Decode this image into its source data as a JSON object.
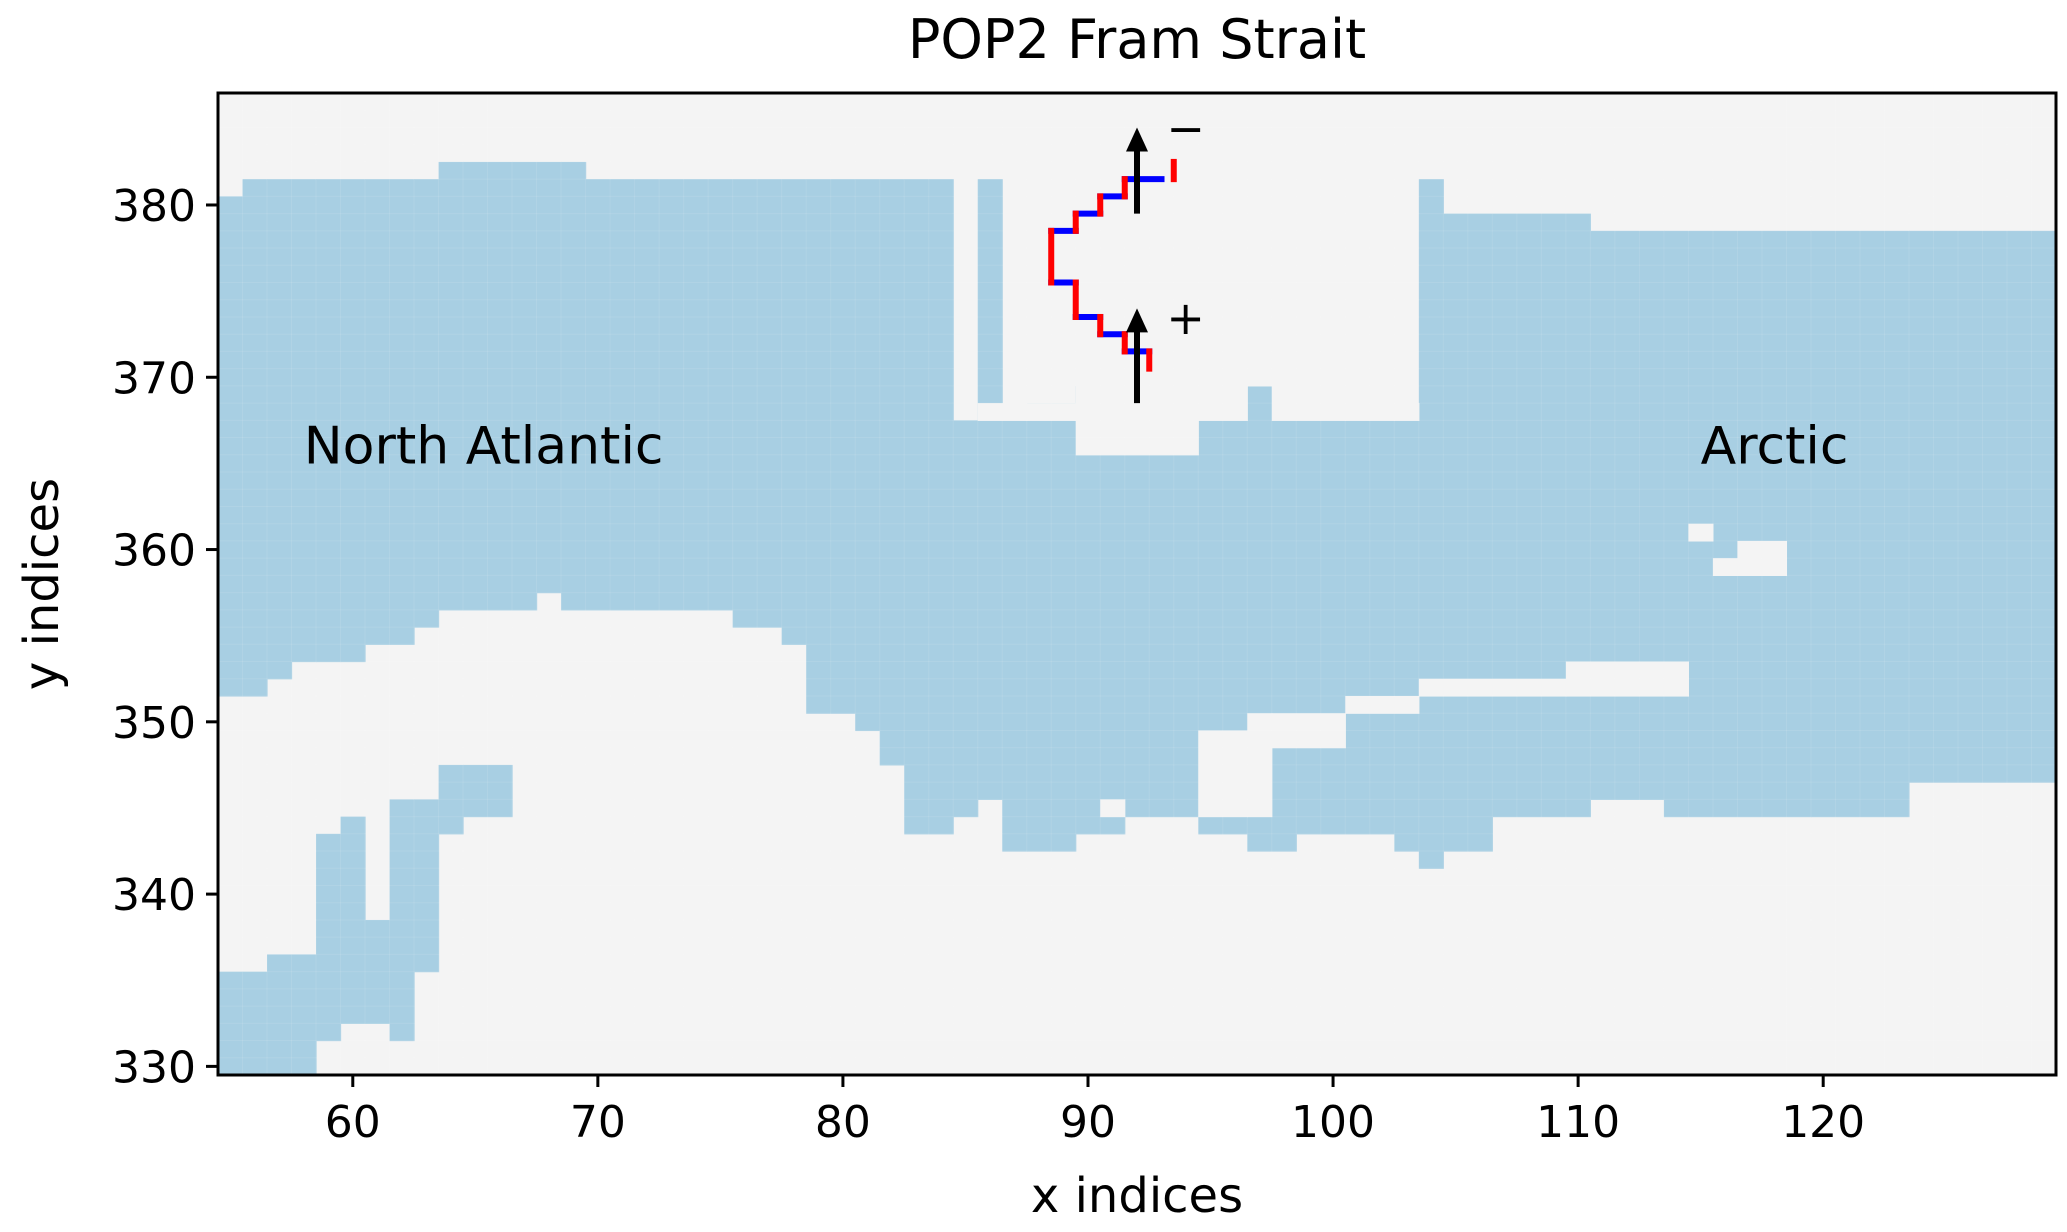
{
  "chart_data": {
    "type": "heatmap",
    "title": "POP2 Fram Strait",
    "xlabel": "x indices",
    "ylabel": "y indices",
    "xlim": [
      54.5,
      129.5
    ],
    "ylim": [
      329.5,
      386.5
    ],
    "xticks": [
      "60",
      "70",
      "80",
      "90",
      "100",
      "110",
      "120"
    ],
    "yticks": [
      "330",
      "340",
      "350",
      "360",
      "370",
      "380"
    ],
    "colors": {
      "ocean": "#a8cfe3",
      "land": "#f4f4f4",
      "u_segment": "#0000ff",
      "v_segment": "#ff0000",
      "arrow": "#000000"
    },
    "annotations": [
      {
        "text": "North Atlantic",
        "x": 58,
        "y": 365
      },
      {
        "text": "Arctic",
        "x": 115,
        "y": 365
      }
    ],
    "direction_signs": [
      {
        "text": "−",
        "x": 93.2,
        "y": 383.5
      },
      {
        "text": "+",
        "x": 93.2,
        "y": 372.5
      }
    ],
    "arrows": [
      {
        "x": 92,
        "y_from": 379.5,
        "y_to": 384.5
      },
      {
        "x": 92,
        "y_from": 368.5,
        "y_to": 374.0
      }
    ],
    "ocean_mask_columns": [
      {
        "x": [
          54.5,
          55.5
        ],
        "ranges": [
          [
            329.5,
            335.5
          ],
          [
            351.5,
            380.5
          ]
        ]
      },
      {
        "x": [
          55.5,
          56.5
        ],
        "ranges": [
          [
            329.5,
            335.5
          ],
          [
            351.5,
            381.5
          ]
        ]
      },
      {
        "x": [
          56.5,
          57.5
        ],
        "ranges": [
          [
            329.5,
            336.5
          ],
          [
            352.5,
            381.5
          ]
        ]
      },
      {
        "x": [
          57.5,
          58.5
        ],
        "ranges": [
          [
            329.5,
            336.5
          ],
          [
            353.5,
            381.5
          ]
        ]
      },
      {
        "x": [
          58.5,
          59.5
        ],
        "ranges": [
          [
            331.5,
            343.5
          ],
          [
            353.5,
            381.5
          ]
        ]
      },
      {
        "x": [
          59.5,
          60.5
        ],
        "ranges": [
          [
            332.5,
            344.5
          ],
          [
            353.5,
            381.5
          ]
        ]
      },
      {
        "x": [
          60.5,
          61.5
        ],
        "ranges": [
          [
            332.5,
            338.5
          ],
          [
            354.5,
            381.5
          ]
        ]
      },
      {
        "x": [
          61.5,
          62.5
        ],
        "ranges": [
          [
            331.5,
            345.5
          ],
          [
            354.5,
            381.5
          ]
        ]
      },
      {
        "x": [
          62.5,
          63.5
        ],
        "ranges": [
          [
            335.5,
            345.5
          ],
          [
            355.5,
            381.5
          ]
        ]
      },
      {
        "x": [
          63.5,
          64.5
        ],
        "ranges": [
          [
            343.5,
            347.5
          ],
          [
            356.5,
            382.5
          ]
        ]
      },
      {
        "x": [
          64.5,
          66.5
        ],
        "ranges": [
          [
            344.5,
            347.5
          ],
          [
            356.5,
            382.5
          ]
        ]
      },
      {
        "x": [
          66.5,
          67.5
        ],
        "ranges": [
          [
            356.5,
            382.5
          ]
        ]
      },
      {
        "x": [
          67.5,
          68.5
        ],
        "ranges": [
          [
            357.5,
            382.5
          ]
        ]
      },
      {
        "x": [
          68.5,
          69.5
        ],
        "ranges": [
          [
            356.5,
            382.5
          ]
        ]
      },
      {
        "x": [
          69.5,
          75.5
        ],
        "ranges": [
          [
            356.5,
            381.5
          ]
        ]
      },
      {
        "x": [
          75.5,
          77.5
        ],
        "ranges": [
          [
            355.5,
            381.5
          ]
        ]
      },
      {
        "x": [
          77.5,
          78.5
        ],
        "ranges": [
          [
            354.5,
            381.5
          ]
        ]
      },
      {
        "x": [
          78.5,
          80.5
        ],
        "ranges": [
          [
            350.5,
            381.5
          ]
        ]
      },
      {
        "x": [
          80.5,
          81.5
        ],
        "ranges": [
          [
            349.5,
            381.5
          ]
        ]
      },
      {
        "x": [
          81.5,
          82.5
        ],
        "ranges": [
          [
            347.5,
            381.5
          ]
        ]
      },
      {
        "x": [
          82.5,
          84.5
        ],
        "ranges": [
          [
            343.5,
            381.5
          ]
        ]
      },
      {
        "x": [
          84.5,
          85.5
        ],
        "ranges": [
          [
            344.5,
            367.5
          ]
        ]
      },
      {
        "x": [
          85.5,
          86.5
        ],
        "ranges": [
          [
            345.5,
            367.5
          ],
          [
            367.5,
            381.5
          ]
        ]
      },
      {
        "x": [
          86.5,
          87.5
        ],
        "ranges": [
          [
            342.5,
            345.5
          ],
          [
            345.5,
            367.5
          ]
        ]
      },
      {
        "x": [
          87.5,
          89.5
        ],
        "ranges": [
          [
            342.5,
            368.5
          ]
        ]
      },
      {
        "x": [
          89.5,
          91.5
        ],
        "ranges": [
          [
            343.5,
            369.5
          ]
        ]
      },
      {
        "x": [
          91.5,
          94.5
        ],
        "ranges": [
          [
            344.5,
            365.5
          ]
        ]
      },
      {
        "x": [
          94.5,
          96.5
        ],
        "ranges": [
          [
            343.5,
            367.5
          ]
        ]
      },
      {
        "x": [
          96.5,
          98.5
        ],
        "ranges": [
          [
            342.5,
            369.5
          ]
        ]
      },
      {
        "x": [
          98.5,
          99.5
        ],
        "ranges": [
          [
            343.5,
            367.5
          ]
        ]
      },
      {
        "x": [
          99.5,
          102.5
        ],
        "ranges": [
          [
            343.5,
            367.5
          ]
        ]
      },
      {
        "x": [
          102.5,
          103.5
        ],
        "ranges": [
          [
            342.5,
            367.5
          ]
        ]
      },
      {
        "x": [
          103.5,
          104.5
        ],
        "ranges": [
          [
            341.5,
            381.5
          ]
        ]
      },
      {
        "x": [
          104.5,
          106.5
        ],
        "ranges": [
          [
            342.5,
            379.5
          ]
        ]
      },
      {
        "x": [
          106.5,
          110.5
        ],
        "ranges": [
          [
            344.5,
            379.5
          ]
        ]
      },
      {
        "x": [
          110.5,
          113.5
        ],
        "ranges": [
          [
            345.5,
            378.5
          ]
        ]
      },
      {
        "x": [
          113.5,
          119.5
        ],
        "ranges": [
          [
            344.5,
            378.5
          ]
        ]
      },
      {
        "x": [
          119.5,
          123.5
        ],
        "ranges": [
          [
            344.5,
            378.5
          ]
        ]
      },
      {
        "x": [
          123.5,
          129.5
        ],
        "ranges": [
          [
            346.5,
            378.5
          ]
        ]
      }
    ],
    "land_patches": [
      {
        "x": [
          85.5,
          87.5
        ],
        "y": [
          367.5,
          368.5
        ]
      },
      {
        "x": [
          87.5,
          89.5
        ],
        "y": [
          367.5,
          368.5
        ]
      },
      {
        "x": [
          89.5,
          91.5
        ],
        "y": [
          365.5,
          370.5
        ]
      },
      {
        "x": [
          91.5,
          94.5
        ],
        "y": [
          365.5,
          371.5
        ]
      },
      {
        "x": [
          94.5,
          96.5
        ],
        "y": [
          367.5,
          371.5
        ]
      },
      {
        "x": [
          96.5,
          98.5
        ],
        "y": [
          369.5,
          370.5
        ]
      },
      {
        "x": [
          97.5,
          100.5
        ],
        "y": [
          367.5,
          369.5
        ]
      },
      {
        "x": [
          100.5,
          102.5
        ],
        "y": [
          367.5,
          368.5
        ]
      },
      {
        "x": [
          102.5,
          103.5
        ],
        "y": [
          367.5,
          368.5
        ]
      },
      {
        "x": [
          114.5,
          115.5
        ],
        "y": [
          360.5,
          361.5
        ]
      },
      {
        "x": [
          115.5,
          116.5
        ],
        "y": [
          358.5,
          359.5
        ]
      },
      {
        "x": [
          116.5,
          118.5
        ],
        "y": [
          358.5,
          360.5
        ]
      },
      {
        "x": [
          94.5,
          96.5
        ],
        "y": [
          344.5,
          349.5
        ]
      },
      {
        "x": [
          96.5,
          97.5
        ],
        "y": [
          344.5,
          350.5
        ]
      },
      {
        "x": [
          97.5,
          100.5
        ],
        "y": [
          348.5,
          350.5
        ]
      },
      {
        "x": [
          100.5,
          103.5
        ],
        "y": [
          350.5,
          351.5
        ]
      },
      {
        "x": [
          103.5,
          109.5
        ],
        "y": [
          351.5,
          352.5
        ]
      },
      {
        "x": [
          109.5,
          114.5
        ],
        "y": [
          351.5,
          353.5
        ]
      },
      {
        "x": [
          90.5,
          91.5
        ],
        "y": [
          344.5,
          345.5
        ]
      }
    ],
    "section_u": [
      [
        [
          91.5,
          381.5
        ],
        [
          93.0,
          381.5
        ]
      ],
      [
        [
          90.5,
          380.5
        ],
        [
          91.5,
          380.5
        ]
      ],
      [
        [
          89.5,
          379.5
        ],
        [
          90.5,
          379.5
        ]
      ],
      [
        [
          88.5,
          378.5
        ],
        [
          89.5,
          378.5
        ]
      ],
      [
        [
          88.5,
          375.5
        ],
        [
          89.5,
          375.5
        ]
      ],
      [
        [
          89.5,
          373.5
        ],
        [
          90.5,
          373.5
        ]
      ],
      [
        [
          90.5,
          372.5
        ],
        [
          91.5,
          372.5
        ]
      ],
      [
        [
          91.5,
          371.5
        ],
        [
          92.5,
          371.5
        ]
      ]
    ],
    "section_v": [
      [
        [
          93.5,
          381.5
        ],
        [
          93.5,
          382.5
        ]
      ],
      [
        [
          91.5,
          380.5
        ],
        [
          91.5,
          381.5
        ]
      ],
      [
        [
          90.5,
          379.5
        ],
        [
          90.5,
          380.5
        ]
      ],
      [
        [
          89.5,
          378.5
        ],
        [
          89.5,
          379.5
        ]
      ],
      [
        [
          88.5,
          375.5
        ],
        [
          88.5,
          378.5
        ]
      ],
      [
        [
          89.5,
          373.5
        ],
        [
          89.5,
          375.5
        ]
      ],
      [
        [
          90.5,
          372.5
        ],
        [
          90.5,
          373.5
        ]
      ],
      [
        [
          91.5,
          371.5
        ],
        [
          91.5,
          372.5
        ]
      ],
      [
        [
          92.5,
          370.5
        ],
        [
          92.5,
          371.5
        ]
      ]
    ]
  }
}
